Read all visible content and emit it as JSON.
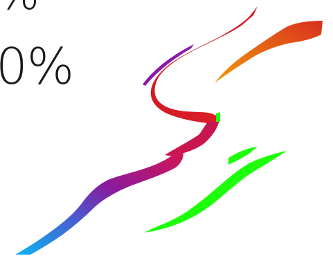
{
  "labels": {
    "top_percentage": "%",
    "main_percentage": "0%"
  },
  "colors": {
    "stroke_red": "#d01e2a",
    "stroke_orange": "#ee7d14",
    "stroke_purple": "#7a1a9c",
    "stroke_magenta": "#c0166a",
    "stroke_blue": "#17a4f0",
    "stroke_green": "#1eff0a",
    "text": "#1a1a1a"
  }
}
